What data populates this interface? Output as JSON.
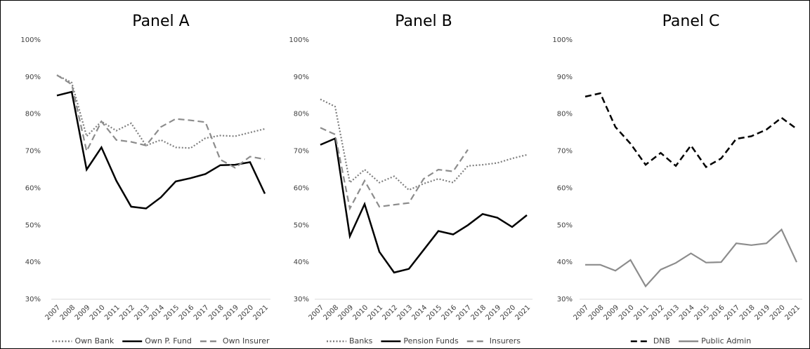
{
  "chart_data": [
    {
      "type": "line",
      "title": "Panel A",
      "categories": [
        "2007",
        "2008",
        "2009",
        "2010",
        "2011",
        "2012",
        "2013",
        "2014",
        "2015",
        "2016",
        "2017",
        "2018",
        "2019",
        "2020",
        "2021"
      ],
      "ylim": [
        30,
        100
      ],
      "yticks": [
        {
          "value": 30,
          "label": "30%"
        },
        {
          "value": 40,
          "label": "40%"
        },
        {
          "value": 50,
          "label": "50%"
        },
        {
          "value": 60,
          "label": "60%"
        },
        {
          "value": 70,
          "label": "70%"
        },
        {
          "value": 80,
          "label": "80%"
        },
        {
          "value": 90,
          "label": "90%"
        },
        {
          "value": 100,
          "label": "100%"
        }
      ],
      "series": [
        {
          "name": "Own Bank",
          "color": "#7f7f7f",
          "dash": "dotted",
          "values": [
            90.5,
            88.5,
            74,
            78,
            75.5,
            77.5,
            71.5,
            73,
            71,
            70.8,
            73.5,
            74.2,
            74,
            75,
            76
          ]
        },
        {
          "name": "Own P. Fund",
          "color": "#000000",
          "dash": "solid",
          "values": [
            85,
            86,
            65,
            71,
            62,
            55,
            54.5,
            57.5,
            61.8,
            62.7,
            63.8,
            66.2,
            66.3,
            67,
            58.5
          ]
        },
        {
          "name": "Own Insurer",
          "color": "#8c8c8c",
          "dash": "dashed",
          "values": [
            90.5,
            88,
            70,
            78,
            73,
            72.5,
            71.5,
            76.5,
            78.7,
            78.3,
            77.8,
            67.7,
            65.5,
            68.5,
            67.8
          ]
        }
      ]
    },
    {
      "type": "line",
      "title": "Panel B",
      "categories": [
        "2007",
        "2008",
        "2009",
        "2010",
        "2011",
        "2012",
        "2013",
        "2014",
        "2015",
        "2016",
        "2017",
        "2018",
        "2019",
        "2020",
        "2021"
      ],
      "ylim": [
        30,
        100
      ],
      "yticks": [
        {
          "value": 30,
          "label": "30%"
        },
        {
          "value": 40,
          "label": "40%"
        },
        {
          "value": 50,
          "label": "50%"
        },
        {
          "value": 60,
          "label": "60%"
        },
        {
          "value": 70,
          "label": "70%"
        },
        {
          "value": 80,
          "label": "80%"
        },
        {
          "value": 90,
          "label": "90%"
        },
        {
          "value": 100,
          "label": "100%"
        }
      ],
      "series": [
        {
          "name": "Banks",
          "color": "#7f7f7f",
          "dash": "dotted",
          "values": [
            84,
            82,
            61.5,
            65,
            61.5,
            63.2,
            59.5,
            61.2,
            62.5,
            61.5,
            66,
            66.3,
            66.8,
            68,
            69
          ]
        },
        {
          "name": "Pension Funds",
          "color": "#000000",
          "dash": "solid",
          "values": [
            71.7,
            73.4,
            47,
            55.7,
            42.8,
            37.2,
            38.2,
            43.3,
            48.4,
            47.5,
            50,
            53,
            52,
            49.5,
            52.7
          ]
        },
        {
          "name": "Insurers",
          "color": "#8c8c8c",
          "dash": "dashed",
          "values": [
            76.3,
            74.5,
            54.5,
            62,
            55,
            55.5,
            56,
            62.5,
            65,
            64.5,
            70.4,
            null,
            null,
            null,
            null
          ]
        }
      ]
    },
    {
      "type": "line",
      "title": "Panel C",
      "categories": [
        "2007",
        "2008",
        "2009",
        "2010",
        "2011",
        "2012",
        "2013",
        "2014",
        "2015",
        "2016",
        "2017",
        "2018",
        "2019",
        "2020",
        "2021"
      ],
      "ylim": [
        30,
        100
      ],
      "yticks": [
        {
          "value": 30,
          "label": "30%"
        },
        {
          "value": 40,
          "label": "40%"
        },
        {
          "value": 50,
          "label": "50%"
        },
        {
          "value": 60,
          "label": "60%"
        },
        {
          "value": 70,
          "label": "70%"
        },
        {
          "value": 80,
          "label": "80%"
        },
        {
          "value": 90,
          "label": "90%"
        },
        {
          "value": 100,
          "label": "100%"
        }
      ],
      "series": [
        {
          "name": "DNB",
          "color": "#000000",
          "dash": "dashed",
          "values": [
            84.7,
            85.6,
            76.5,
            72,
            66.3,
            69.5,
            66,
            71.5,
            65.7,
            68,
            73.3,
            74,
            75.8,
            79,
            76
          ]
        },
        {
          "name": "Public Admin",
          "color": "#8c8c8c",
          "dash": "solid",
          "values": [
            39.3,
            39.3,
            37.7,
            40.6,
            33.5,
            38,
            39.8,
            42.4,
            39.9,
            40,
            45.1,
            44.6,
            45.1,
            48.8,
            40
          ]
        }
      ]
    }
  ]
}
